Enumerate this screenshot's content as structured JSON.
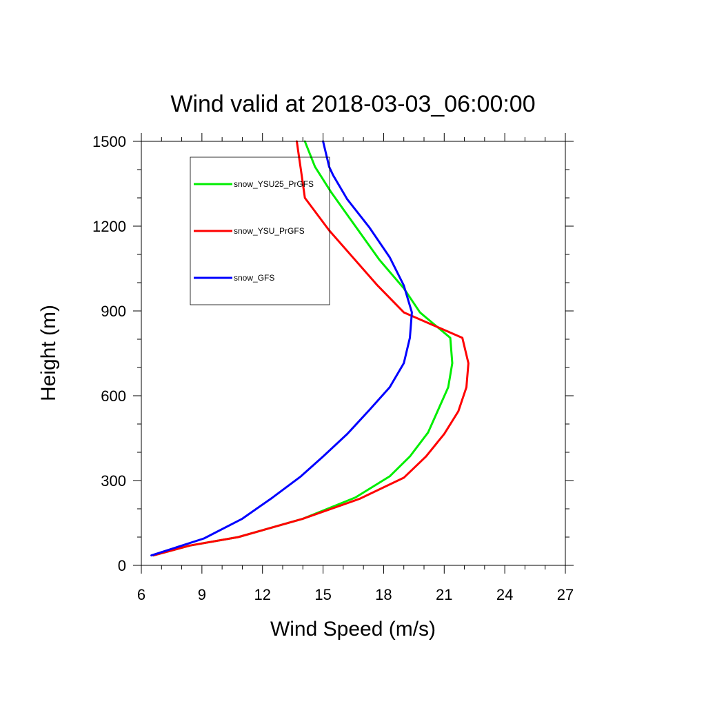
{
  "chart_data": {
    "type": "line",
    "title": "Wind valid at 2018-03-03_06:00:00",
    "xlabel": "Wind Speed (m/s)",
    "ylabel": "Height (m)",
    "xlim": [
      6,
      27
    ],
    "ylim": [
      0,
      1500
    ],
    "xticks": [
      6,
      9,
      12,
      15,
      18,
      21,
      24,
      27
    ],
    "yticks": [
      0,
      300,
      600,
      900,
      1200,
      1500
    ],
    "grid": false,
    "legend_position": "top-left",
    "series": [
      {
        "name": "snow_YSU25_PrGFS",
        "color": "#00ee00",
        "x": [
          6.6,
          8.4,
          10.8,
          14.0,
          16.6,
          18.3,
          19.3,
          20.2,
          20.7,
          21.2,
          21.4,
          21.3,
          19.8,
          19.0,
          17.8,
          16.6,
          15.4,
          14.6,
          14.1
        ],
        "y": [
          35,
          70,
          100,
          165,
          240,
          315,
          385,
          470,
          550,
          630,
          715,
          805,
          895,
          980,
          1080,
          1200,
          1320,
          1410,
          1500
        ]
      },
      {
        "name": "snow_YSU_PrGFS",
        "color": "#ff0000",
        "x": [
          6.6,
          8.4,
          10.8,
          14.0,
          16.8,
          19.0,
          20.1,
          21.0,
          21.7,
          22.1,
          22.2,
          21.9,
          19.0,
          17.7,
          15.3,
          14.1,
          13.9,
          13.8,
          13.7
        ],
        "y": [
          35,
          70,
          100,
          165,
          235,
          310,
          385,
          465,
          545,
          630,
          715,
          805,
          895,
          990,
          1185,
          1300,
          1400,
          1450,
          1500
        ]
      },
      {
        "name": "snow_GFS",
        "color": "#0000ff",
        "x": [
          6.5,
          9.1,
          11.0,
          12.5,
          13.9,
          15.0,
          16.2,
          17.3,
          18.3,
          19.0,
          19.3,
          19.4,
          19.0,
          18.3,
          17.3,
          16.2,
          15.5,
          15.3,
          15.0
        ],
        "y": [
          35,
          95,
          165,
          240,
          315,
          385,
          465,
          550,
          630,
          715,
          805,
          895,
          990,
          1090,
          1195,
          1295,
          1380,
          1410,
          1500
        ]
      }
    ]
  }
}
